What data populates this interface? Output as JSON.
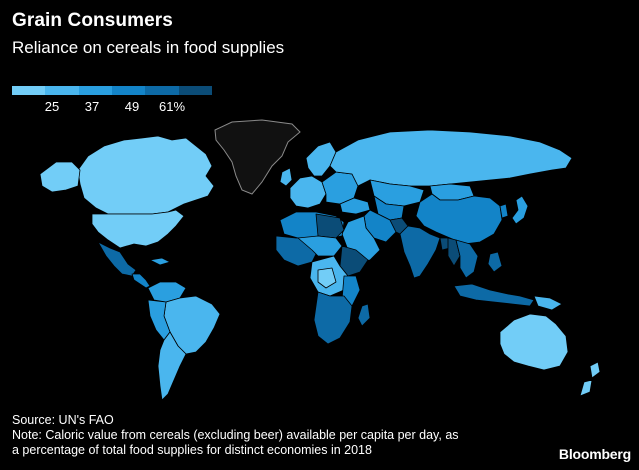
{
  "header": {
    "title": "Grain Consumers",
    "subtitle": "Reliance on cereals in food supplies"
  },
  "legend": {
    "colors": [
      "#72cdf7",
      "#4ab6ee",
      "#2a9fe0",
      "#1384c8",
      "#0d6aa6",
      "#0b4c77"
    ],
    "ticks": [
      {
        "label": "25",
        "value": 25
      },
      {
        "label": "37",
        "value": 37
      },
      {
        "label": "49",
        "value": 49
      },
      {
        "label": "61%",
        "value": 61
      }
    ],
    "range": [
      13,
      73
    ]
  },
  "map_colors": {
    "no_data": "#000000",
    "border": "#000000",
    "greenland": "#111111",
    "greenland_outline": "#8a8a8a"
  },
  "footer": {
    "source": "Source: UN's FAO",
    "note_line1": "Note: Caloric value from cereals (excluding beer) available per capita per day, as",
    "note_line2": "a percentage of total food supplies for distinct economies in 2018"
  },
  "brand": "Bloomberg"
}
